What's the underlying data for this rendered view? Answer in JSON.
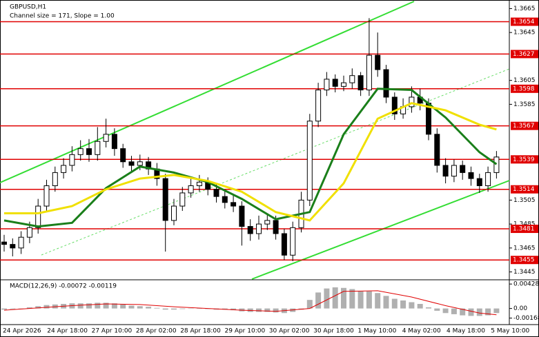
{
  "chart_data": [
    {
      "type": "candlestick",
      "title": "GBPUSD,H1",
      "subtitle": "Channel size = 171, Slope = 1.00",
      "open": [
        1.347,
        1.3468,
        1.3465,
        1.3474,
        1.3482,
        1.35,
        1.3517,
        1.3528,
        1.3534,
        1.3543,
        1.3548,
        1.3543,
        1.3554,
        1.356,
        1.3548,
        1.3537,
        1.3534,
        1.3537,
        1.3531,
        1.3523,
        1.3488,
        1.35,
        1.3511,
        1.3517,
        1.352,
        1.3514,
        1.3508,
        1.3503,
        1.35,
        1.3483,
        1.3477,
        1.3485,
        1.3488,
        1.3477,
        1.3459,
        1.3482,
        1.3505,
        1.3571,
        1.3597,
        1.3606,
        1.36,
        1.3603,
        1.3609,
        1.3597,
        1.3626,
        1.3614,
        1.3591,
        1.3577,
        1.3583,
        1.3591,
        1.3586,
        1.356,
        1.3534,
        1.3525,
        1.3534,
        1.3528,
        1.3523,
        1.3517,
        1.3528
      ],
      "high": [
        1.3476,
        1.3473,
        1.3479,
        1.3487,
        1.3506,
        1.3522,
        1.3533,
        1.354,
        1.355,
        1.3555,
        1.3556,
        1.3566,
        1.3573,
        1.3565,
        1.3552,
        1.3542,
        1.3543,
        1.3541,
        1.3536,
        1.3527,
        1.3506,
        1.3516,
        1.3523,
        1.3526,
        1.3524,
        1.3519,
        1.3513,
        1.3509,
        1.3504,
        1.3489,
        1.3492,
        1.3494,
        1.3492,
        1.3481,
        1.3487,
        1.3512,
        1.3577,
        1.3603,
        1.3612,
        1.361,
        1.3609,
        1.3615,
        1.3612,
        1.3657,
        1.3645,
        1.3618,
        1.3595,
        1.359,
        1.36,
        1.3598,
        1.359,
        1.3565,
        1.354,
        1.3539,
        1.3538,
        1.3533,
        1.3527,
        1.3533,
        1.3546
      ],
      "low": [
        1.3462,
        1.3458,
        1.346,
        1.3469,
        1.3477,
        1.3495,
        1.3512,
        1.3523,
        1.3529,
        1.3538,
        1.3537,
        1.3538,
        1.3549,
        1.3542,
        1.3532,
        1.3529,
        1.353,
        1.3526,
        1.3517,
        1.3462,
        1.3484,
        1.3496,
        1.3507,
        1.3512,
        1.3509,
        1.3503,
        1.3498,
        1.3495,
        1.3467,
        1.3471,
        1.3472,
        1.348,
        1.3472,
        1.3455,
        1.3454,
        1.3478,
        1.35,
        1.3566,
        1.3592,
        1.3595,
        1.3596,
        1.3598,
        1.3592,
        1.3592,
        1.3608,
        1.3586,
        1.3572,
        1.3573,
        1.3578,
        1.358,
        1.3555,
        1.3528,
        1.3519,
        1.352,
        1.3522,
        1.3517,
        1.3511,
        1.3512,
        1.3523
      ],
      "close": [
        1.3468,
        1.3465,
        1.3474,
        1.3482,
        1.35,
        1.3517,
        1.3528,
        1.3534,
        1.3543,
        1.3548,
        1.3543,
        1.3554,
        1.356,
        1.3548,
        1.3537,
        1.3534,
        1.3537,
        1.3531,
        1.3523,
        1.3488,
        1.35,
        1.3511,
        1.3517,
        1.352,
        1.3514,
        1.3508,
        1.3503,
        1.35,
        1.3483,
        1.3477,
        1.3485,
        1.3488,
        1.3477,
        1.3459,
        1.3482,
        1.3505,
        1.3571,
        1.3597,
        1.3606,
        1.36,
        1.3603,
        1.3609,
        1.3597,
        1.3626,
        1.3614,
        1.3591,
        1.3577,
        1.3583,
        1.3591,
        1.3586,
        1.356,
        1.3534,
        1.3525,
        1.3534,
        1.3528,
        1.3523,
        1.3517,
        1.3528,
        1.3541
      ],
      "moving_averages": [
        {
          "color": "#1a7f1a",
          "x": [
            0,
            4,
            8,
            12,
            16,
            20,
            24,
            28,
            32,
            36,
            40,
            44,
            48,
            52,
            56,
            58
          ],
          "values": [
            1.3488,
            1.3483,
            1.3486,
            1.3515,
            1.3533,
            1.3528,
            1.352,
            1.3506,
            1.3489,
            1.3495,
            1.356,
            1.3598,
            1.3597,
            1.3574,
            1.3545,
            1.3535
          ]
        },
        {
          "color": "#f0e000",
          "x": [
            0,
            4,
            8,
            12,
            16,
            20,
            24,
            28,
            32,
            36,
            40,
            44,
            48,
            52,
            56,
            58
          ],
          "values": [
            1.3494,
            1.3494,
            1.35,
            1.3514,
            1.3523,
            1.3526,
            1.3521,
            1.3512,
            1.3495,
            1.3488,
            1.3519,
            1.3573,
            1.3586,
            1.358,
            1.3568,
            1.3564
          ]
        }
      ],
      "levels": [
        1.3654,
        1.3627,
        1.3598,
        1.3567,
        1.3539,
        1.3514,
        1.3481,
        1.3455
      ],
      "level_color": "#e00000",
      "ylim": [
        1.3439,
        1.3671
      ],
      "yticks": [
        1.3665,
        1.3645,
        1.3605,
        1.3585,
        1.3505,
        1.3485,
        1.3465,
        1.3445
      ],
      "x_labels": [
        "24 Apr 2026",
        "24 Apr 18:00",
        "27 Apr 10:00",
        "28 Apr 02:00",
        "28 Apr 18:00",
        "29 Apr 10:00",
        "30 Apr 02:00",
        "30 Apr 18:00",
        "1 May 10:00",
        "4 May 02:00",
        "4 May 18:00",
        "5 May 10:00"
      ]
    },
    {
      "type": "macd",
      "title": "MACD(12,26,9) -0.00072 -0.00119",
      "histogram": [
        -0.0002,
        -0.0001,
        0.0,
        0.0002,
        0.0004,
        0.0006,
        0.0007,
        0.0008,
        0.0009,
        0.0009,
        0.0009,
        0.001,
        0.001,
        0.0009,
        0.0007,
        0.0005,
        0.0004,
        0.0003,
        0.0001,
        -0.0002,
        -0.0002,
        -0.0001,
        0.0,
        0.0,
        -0.0001,
        -0.0002,
        -0.0002,
        -0.0003,
        -0.0005,
        -0.0006,
        -0.0006,
        -0.0006,
        -0.0007,
        -0.0008,
        -0.0006,
        -0.0002,
        0.0015,
        0.0028,
        0.0035,
        0.0037,
        0.0036,
        0.0034,
        0.003,
        0.003,
        0.0027,
        0.0022,
        0.0017,
        0.0014,
        0.0011,
        0.0008,
        0.0002,
        -0.0004,
        -0.0008,
        -0.001,
        -0.0012,
        -0.0013,
        -0.0013,
        -0.0012,
        -0.0008
      ],
      "histogram_color": "#b0b0b0",
      "signal": {
        "color": "#e00000",
        "x": [
          0,
          4,
          8,
          12,
          16,
          20,
          24,
          28,
          32,
          36,
          40,
          44,
          48,
          52,
          56,
          58
        ],
        "values": [
          -0.0003,
          0.0001,
          0.0005,
          0.0008,
          0.0007,
          0.0003,
          0.0,
          -0.0003,
          -0.0005,
          0.0,
          0.003,
          0.0031,
          0.002,
          0.0005,
          -0.0008,
          -0.0011
        ]
      },
      "ylim": [
        -0.0027,
        0.0049
      ],
      "yticks": [
        0.00428,
        {
          "value": 0,
          "label": "0.00"
        },
        -0.00168
      ]
    }
  ]
}
